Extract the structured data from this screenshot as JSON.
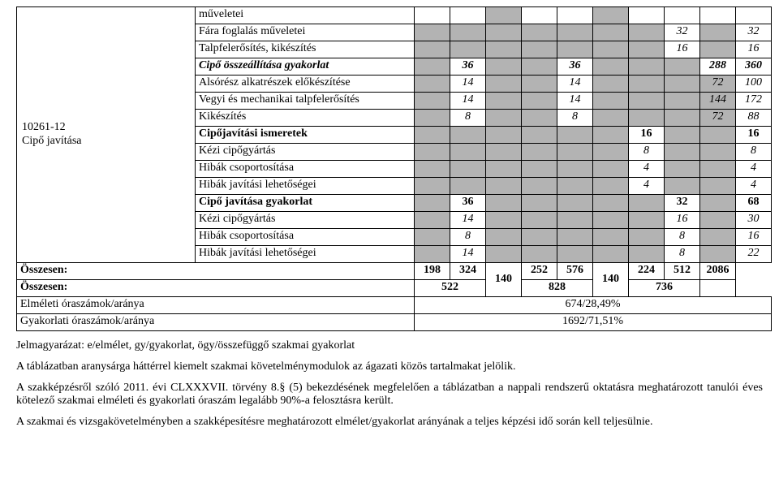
{
  "side": {
    "code": "10261-12",
    "name": "Cipő javítása"
  },
  "rows": [
    {
      "label": "műveletei",
      "c": [
        "",
        "",
        "",
        "",
        "",
        "",
        "",
        "",
        "",
        ""
      ]
    },
    {
      "label": "Fára foglalás műveletei",
      "c": [
        "",
        "",
        "",
        "",
        "",
        "",
        "",
        "32",
        "",
        "32"
      ],
      "italic": true
    },
    {
      "label": "Talpfelerősítés, kikészítés",
      "c": [
        "",
        "",
        "",
        "",
        "",
        "",
        "",
        "16",
        "",
        "16"
      ],
      "italic": true
    },
    {
      "label": "Cipő összeállítása gyakorlat",
      "c": [
        "",
        "36",
        "",
        "",
        "36",
        "",
        "",
        "",
        "288",
        "360"
      ],
      "boldItalic": true
    },
    {
      "label": "Alsórész alkatrészek előkészítése",
      "c": [
        "",
        "14",
        "",
        "",
        "14",
        "",
        "",
        "",
        "72",
        "100"
      ],
      "italic": true
    },
    {
      "label": "Vegyi és mechanikai talpfelerősítés",
      "c": [
        "",
        "14",
        "",
        "",
        "14",
        "",
        "",
        "",
        "144",
        "172"
      ],
      "italic": true
    },
    {
      "label": "Kikészítés",
      "c": [
        "",
        "8",
        "",
        "",
        "8",
        "",
        "",
        "",
        "72",
        "88"
      ],
      "italic": true
    },
    {
      "label": "Cipőjavítási ismeretek",
      "c": [
        "",
        "",
        "",
        "",
        "",
        "",
        "16",
        "",
        "",
        "16"
      ],
      "bold": true
    },
    {
      "label": "Kézi cipőgyártás",
      "c": [
        "",
        "",
        "",
        "",
        "",
        "",
        "8",
        "",
        "",
        "8"
      ]
    },
    {
      "label": "Hibák csoportosítása",
      "c": [
        "",
        "",
        "",
        "",
        "",
        "",
        "4",
        "",
        "",
        "4"
      ]
    },
    {
      "label": "Hibák javítási lehetőségei",
      "c": [
        "",
        "",
        "",
        "",
        "",
        "",
        "4",
        "",
        "",
        "4"
      ]
    },
    {
      "label": "Cipő javítása gyakorlat",
      "c": [
        "",
        "36",
        "",
        "",
        "",
        "",
        "",
        "32",
        "",
        "68"
      ],
      "bold": true
    },
    {
      "label": "Kézi cipőgyártás",
      "c": [
        "",
        "14",
        "",
        "",
        "",
        "",
        "",
        "16",
        "",
        "30"
      ],
      "italic": true
    },
    {
      "label": "Hibák csoportosítása",
      "c": [
        "",
        "8",
        "",
        "",
        "",
        "",
        "",
        "8",
        "",
        "16"
      ],
      "italic": true
    },
    {
      "label": "Hibák javítási lehetőségei",
      "c": [
        "",
        "14",
        "",
        "",
        "",
        "",
        "",
        "8",
        "",
        "22"
      ],
      "italic": true
    }
  ],
  "sum1": {
    "label": "Összesen:",
    "c": [
      "198",
      "324",
      "140",
      "252",
      "576",
      "140",
      "224",
      "512",
      "2086"
    ]
  },
  "sum2": {
    "label": "Összesen:",
    "c": [
      "522",
      "828",
      "736"
    ]
  },
  "ratio1": {
    "label": "Elméleti óraszámok/aránya",
    "value": "674/28,49%"
  },
  "ratio2": {
    "label": "Gyakorlati óraszámok/aránya",
    "value": "1692/71,51%"
  },
  "para1": "Jelmagyarázat: e/elmélet, gy/gyakorlat, ögy/összefüggő szakmai gyakorlat",
  "para2": "A táblázatban aranysárga háttérrel kiemelt szakmai követelménymodulok az ágazati közös tartalmakat jelölik.",
  "para3": "A szakképzésről szóló 2011. évi CLXXXVII. törvény 8.§ (5) bekezdésének megfelelően a táblázatban a nappali rendszerű oktatásra meghatározott tanulói éves kötelező szakmai elméleti és gyakorlati óraszám legalább 90%-a felosztásra került.",
  "para4": "A szakmai és vizsgakövetelményben a szakképesítésre meghatározott elmélet/gyakorlat arányának a teljes képzési idő során kell teljesülnie."
}
